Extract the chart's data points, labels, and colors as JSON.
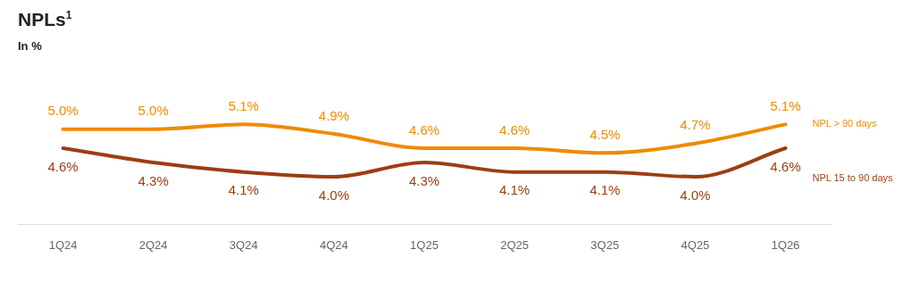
{
  "chart_data": {
    "type": "line",
    "title": "NPLs$^{1}$",
    "subtitle": "In %",
    "categories": [
      "1Q24",
      "2Q24",
      "3Q24",
      "4Q24",
      "1Q25",
      "2Q25",
      "3Q25",
      "4Q25",
      "1Q26"
    ],
    "series": [
      {
        "name": "NPL > 90 days",
        "color": "#f08a00",
        "values": [
          5.0,
          5.0,
          5.1,
          4.9,
          4.6,
          4.6,
          4.5,
          4.7,
          5.1
        ],
        "value_labels": [
          "5.0%",
          "5.0%",
          "5.1%",
          "4.9%",
          "4.6%",
          "4.6%",
          "4.5%",
          "4.7%",
          "5.1%"
        ]
      },
      {
        "name": "NPL 15 to 90 days",
        "color": "#9c3d12",
        "values": [
          4.6,
          4.3,
          4.1,
          4.0,
          4.3,
          4.1,
          4.1,
          4.0,
          4.6
        ],
        "value_labels": [
          "4.6%",
          "4.3%",
          "4.1%",
          "4.0%",
          "4.3%",
          "4.1%",
          "4.1%",
          "4.0%",
          "4.6%"
        ]
      }
    ],
    "legend": false,
    "grid": false,
    "marker": "none",
    "line_style": "solid"
  }
}
